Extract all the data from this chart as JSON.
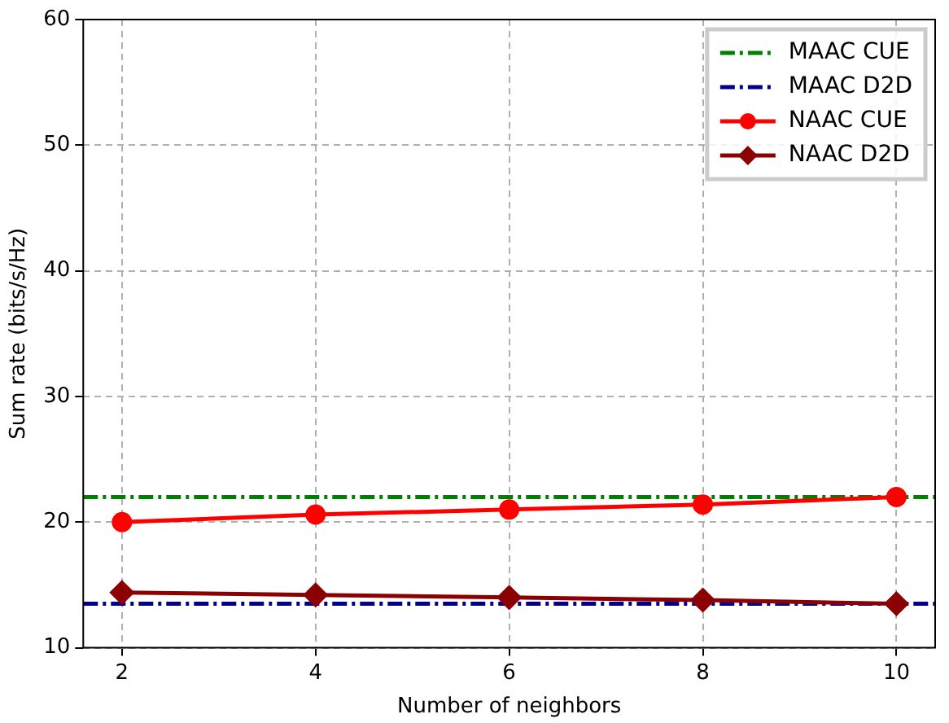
{
  "chart_data": {
    "type": "line",
    "xlabel": "Number of neighbors",
    "ylabel": "Sum rate (bits/s/Hz)",
    "x": [
      2,
      4,
      6,
      8,
      10
    ],
    "xlim": [
      1.6,
      10.4
    ],
    "xticks": [
      2,
      4,
      6,
      8,
      10
    ],
    "ylim": [
      10,
      60
    ],
    "yticks": [
      10,
      20,
      30,
      40,
      50,
      60
    ],
    "grid": true,
    "legend": "top right",
    "ref_lines": [
      {
        "axis": "y",
        "value": 22,
        "label": "MAAC CUE",
        "color": "#007f00",
        "line_style": "dashed"
      },
      {
        "axis": "y",
        "value": 13.5,
        "label": "MAAC D2D",
        "color": "#00008b",
        "line_style": "dashed"
      }
    ],
    "series": [
      {
        "name": "NAAC CUE",
        "color": "#ff0000",
        "values": [
          20,
          20.6,
          21,
          21.4,
          22
        ],
        "marker": "circle",
        "line_style": "solid"
      },
      {
        "name": "NAAC D2D",
        "color": "#8b0000",
        "values": [
          14.4,
          14.2,
          14.0,
          13.8,
          13.5
        ],
        "marker": "diamond",
        "line_style": "solid"
      }
    ]
  }
}
